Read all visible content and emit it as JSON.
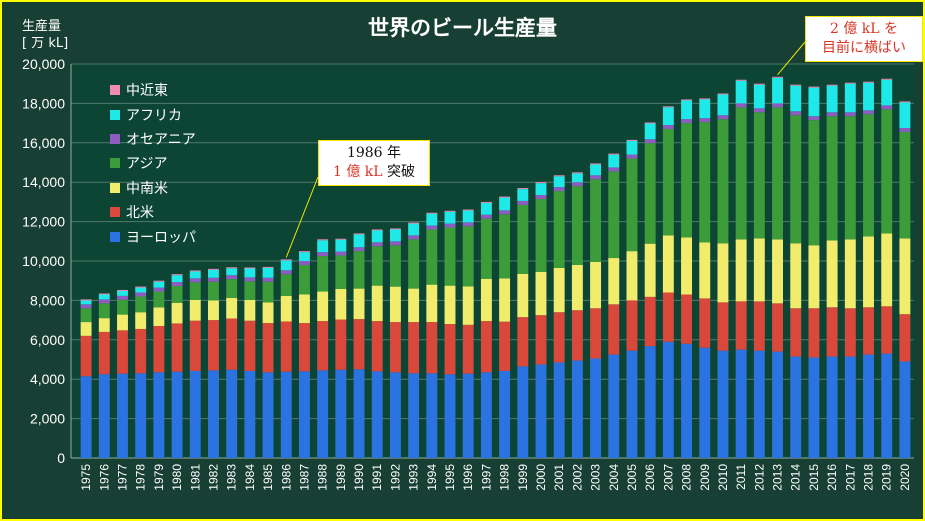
{
  "chart_data": {
    "type": "bar",
    "stacked": true,
    "title": "世界のビール生産量",
    "ylabel_line1": "生産量",
    "ylabel_line2": "[ 万 kL]",
    "ylim": [
      0,
      20000
    ],
    "yticks": [
      "0",
      "2,000",
      "4,000",
      "6,000",
      "8,000",
      "10,000",
      "12,000",
      "14,000",
      "16,000",
      "18,000",
      "20,000"
    ],
    "grid": true,
    "legend_position": "top-left",
    "categories": [
      "1975",
      "1976",
      "1977",
      "1978",
      "1979",
      "1980",
      "1981",
      "1982",
      "1983",
      "1984",
      "1985",
      "1986",
      "1987",
      "1988",
      "1989",
      "1990",
      "1991",
      "1992",
      "1993",
      "1994",
      "1995",
      "1996",
      "1997",
      "1998",
      "1999",
      "2000",
      "2001",
      "2002",
      "2003",
      "2004",
      "2005",
      "2006",
      "2007",
      "2008",
      "2009",
      "2010",
      "2011",
      "2012",
      "2013",
      "2014",
      "2015",
      "2016",
      "2017",
      "2018",
      "2019",
      "2020"
    ],
    "series": [
      {
        "name": "ヨーロッパ",
        "color": "#2b73e0",
        "values": [
          4150,
          4250,
          4280,
          4300,
          4350,
          4380,
          4420,
          4450,
          4480,
          4420,
          4350,
          4380,
          4400,
          4450,
          4480,
          4500,
          4400,
          4350,
          4300,
          4300,
          4250,
          4280,
          4350,
          4420,
          4650,
          4750,
          4850,
          4950,
          5050,
          5250,
          5450,
          5680,
          5900,
          5800,
          5600,
          5450,
          5500,
          5450,
          5400,
          5150,
          5100,
          5150,
          5150,
          5250,
          5300,
          4900
        ]
      },
      {
        "name": "北米",
        "color": "#d9483b",
        "values": [
          2050,
          2150,
          2200,
          2250,
          2350,
          2450,
          2550,
          2550,
          2600,
          2550,
          2500,
          2550,
          2450,
          2500,
          2550,
          2550,
          2550,
          2550,
          2600,
          2600,
          2550,
          2480,
          2600,
          2500,
          2500,
          2500,
          2550,
          2550,
          2550,
          2550,
          2550,
          2500,
          2500,
          2500,
          2500,
          2450,
          2450,
          2500,
          2450,
          2450,
          2500,
          2500,
          2450,
          2400,
          2400,
          2400
        ]
      },
      {
        "name": "中南米",
        "color": "#f2ec6c",
        "values": [
          700,
          700,
          800,
          850,
          950,
          1050,
          1050,
          1000,
          1050,
          1050,
          1050,
          1300,
          1450,
          1500,
          1550,
          1550,
          1800,
          1800,
          1700,
          1900,
          1950,
          1950,
          2150,
          2200,
          2200,
          2200,
          2250,
          2300,
          2350,
          2350,
          2500,
          2700,
          2900,
          2900,
          2850,
          3000,
          3150,
          3200,
          3250,
          3300,
          3200,
          3400,
          3500,
          3600,
          3700,
          3850
        ]
      },
      {
        "name": "アジア",
        "color": "#3c9c3a",
        "values": [
          700,
          750,
          750,
          800,
          800,
          850,
          900,
          950,
          950,
          950,
          1050,
          1100,
          1500,
          1800,
          1700,
          1900,
          2000,
          2100,
          2500,
          2800,
          2950,
          3050,
          3050,
          3250,
          3500,
          3700,
          3900,
          4000,
          4200,
          4400,
          4700,
          5100,
          5400,
          5800,
          6100,
          6300,
          6700,
          6400,
          6700,
          6500,
          6350,
          6300,
          6250,
          6200,
          6300,
          5400
        ]
      },
      {
        "name": "オセアニア",
        "color": "#8d5cc0",
        "values": [
          200,
          200,
          200,
          200,
          200,
          200,
          200,
          200,
          200,
          200,
          200,
          200,
          200,
          200,
          200,
          200,
          200,
          200,
          200,
          200,
          200,
          200,
          200,
          200,
          200,
          200,
          200,
          200,
          200,
          200,
          200,
          200,
          200,
          200,
          200,
          200,
          200,
          200,
          200,
          200,
          200,
          200,
          200,
          200,
          200,
          200
        ]
      },
      {
        "name": "アフリカ",
        "color": "#1ee8e8",
        "values": [
          200,
          250,
          250,
          250,
          300,
          350,
          350,
          400,
          350,
          450,
          500,
          500,
          450,
          600,
          600,
          650,
          600,
          600,
          600,
          600,
          600,
          600,
          600,
          650,
          600,
          600,
          550,
          450,
          550,
          650,
          700,
          800,
          900,
          950,
          950,
          1050,
          1150,
          1200,
          1300,
          1300,
          1450,
          1350,
          1450,
          1400,
          1300,
          1300
        ]
      },
      {
        "name": "中近東",
        "color": "#f08cb4",
        "values": [
          50,
          50,
          50,
          50,
          50,
          50,
          50,
          50,
          50,
          50,
          50,
          50,
          50,
          50,
          50,
          50,
          50,
          50,
          50,
          50,
          50,
          50,
          50,
          50,
          50,
          50,
          50,
          50,
          50,
          50,
          50,
          50,
          50,
          50,
          50,
          50,
          50,
          50,
          50,
          50,
          50,
          50,
          50,
          50,
          50,
          50
        ]
      }
    ],
    "annotations": [
      {
        "year": "1986",
        "line1": "1986 年",
        "line2_red": "1 億 kL",
        "line2_rest": " 突破"
      },
      {
        "year": "2013",
        "line1": "2 億 kL を",
        "line2": "目前に横ばい"
      }
    ]
  }
}
